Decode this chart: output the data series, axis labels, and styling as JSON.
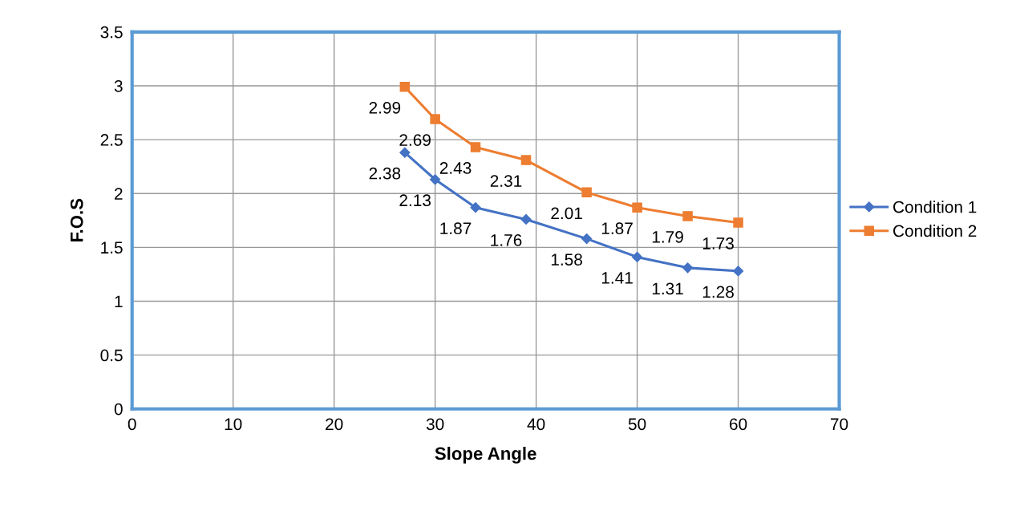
{
  "chart_data": {
    "type": "line",
    "xlabel": "Slope Angle",
    "ylabel": "F.O.S",
    "x": [
      27,
      30,
      34,
      39,
      45,
      50,
      55,
      60
    ],
    "series": [
      {
        "name": "Condition 1",
        "color": "#4472c4",
        "marker": "diamond",
        "values": [
          2.38,
          2.13,
          1.87,
          1.76,
          1.58,
          1.41,
          1.31,
          1.28
        ]
      },
      {
        "name": "Condition 2",
        "color": "#ed7d31",
        "marker": "square",
        "values": [
          2.99,
          2.69,
          2.43,
          2.31,
          2.01,
          1.87,
          1.79,
          1.73
        ]
      }
    ],
    "xlim": [
      0,
      70
    ],
    "xticks": [
      0,
      10,
      20,
      30,
      40,
      50,
      60,
      70
    ],
    "ylim": [
      0,
      3.5
    ],
    "yticks": [
      0,
      0.5,
      1,
      1.5,
      2,
      2.5,
      3,
      3.5
    ],
    "grid": true,
    "legend": "right",
    "data_labels": true,
    "line_style": "solid"
  }
}
